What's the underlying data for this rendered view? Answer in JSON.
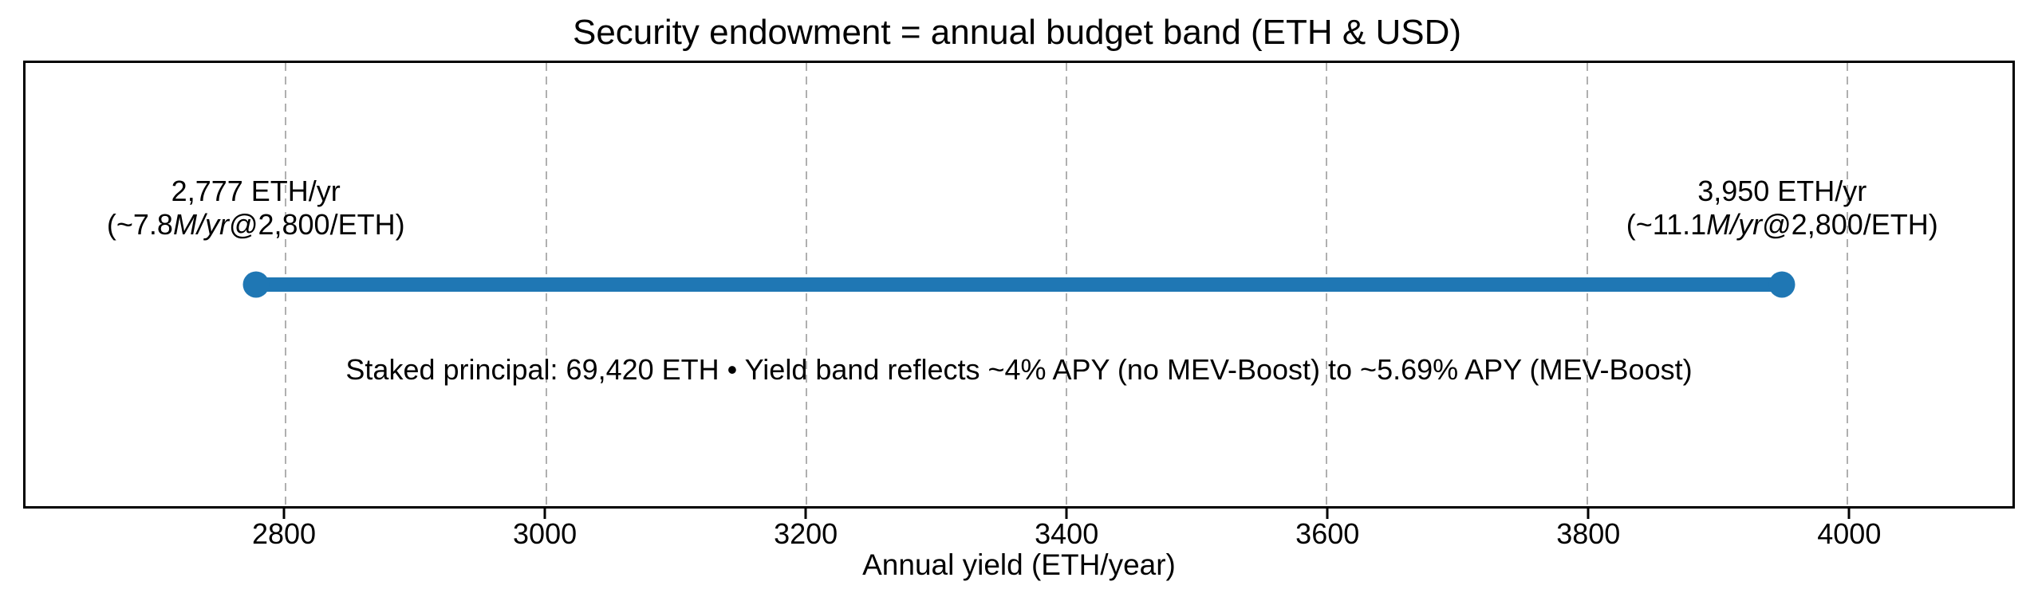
{
  "chart_data": {
    "type": "line",
    "subtype": "horizontal-range-dumbbell",
    "title": "Security endowment = annual budget band (ETH & USD)",
    "xlabel": "Annual yield (ETH/year)",
    "ylabel": "",
    "xlim": [
      2600,
      4127
    ],
    "xticks": [
      2800,
      3000,
      3200,
      3400,
      3600,
      3800,
      4000
    ],
    "grid": {
      "axis": "x",
      "style": "dashed",
      "color": "#b0b0b0"
    },
    "legend": "none",
    "series": [
      {
        "name": "annual budget band",
        "x_start": 2777,
        "x_end": 3950,
        "units": "ETH/yr",
        "color": "#1f77b4",
        "marker": "circle"
      }
    ],
    "annotations": [
      {
        "x": 2777,
        "line1": "2,777 ETH/yr",
        "line2": "(~7.8M/yr@2,800/ETH)",
        "line2_segments": [
          {
            "text": "(~7.8",
            "style": "normal"
          },
          {
            "text": "M/yr",
            "style": "italic"
          },
          {
            "text": "@2,800/ETH)",
            "style": "normal"
          }
        ]
      },
      {
        "x": 3950,
        "line1": "3,950 ETH/yr",
        "line2": "(~11.1M/yr@2,800/ETH)",
        "line2_segments": [
          {
            "text": "(~11.1",
            "style": "normal"
          },
          {
            "text": "M/yr",
            "style": "italic"
          },
          {
            "text": "@2,800/ETH)",
            "style": "normal"
          }
        ]
      }
    ],
    "center_note": "Staked principal: 69,420 ETH • Yield band reflects ~4% APY (no MEV-Boost) to ~5.69% APY (MEV-Boost)",
    "colors": {
      "band": "#1f77b4",
      "text": "#000000",
      "grid": "#b0b0b0",
      "spine": "#000000",
      "background": "#ffffff"
    }
  }
}
